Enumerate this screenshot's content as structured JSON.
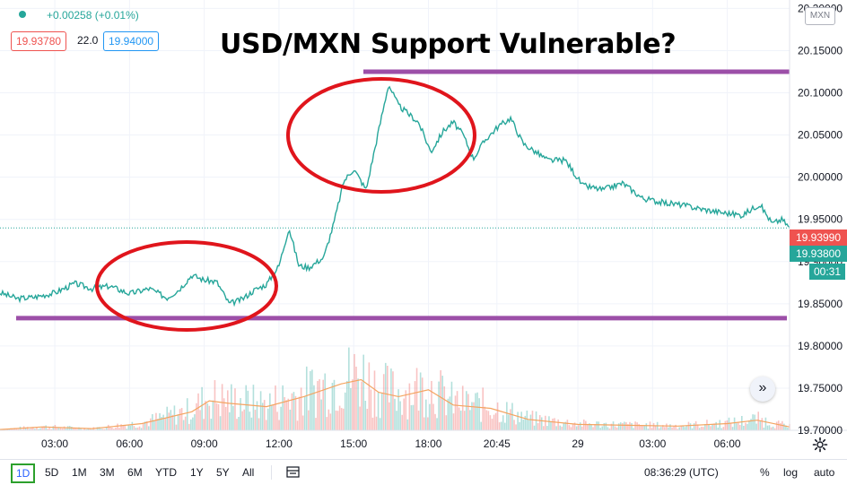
{
  "header": {
    "change": "+0.00258 (+0.01%)",
    "bid": "19.93780",
    "spread": "22.0",
    "ask": "19.94000"
  },
  "title": "USD/MXN Support Vulnerable?",
  "currency": "MXN",
  "price_tags": {
    "last_red": "19.93990",
    "last_green": "19.93800",
    "countdown": "00:31"
  },
  "bottom_bar": {
    "ranges": [
      "1D",
      "5D",
      "1M",
      "3M",
      "6M",
      "YTD",
      "1Y",
      "5Y",
      "All"
    ],
    "active_range": "1D",
    "clock": "08:36:29 (UTC)",
    "percent": "%",
    "log": "log",
    "auto": "auto"
  },
  "colors": {
    "up": "#26a69a",
    "down": "#ef5350",
    "annotation_line": "#9c4fa8",
    "annotation_circle": "#e0151c",
    "volume_ma": "#f4a460"
  },
  "icons": [
    "live-dot-icon",
    "scroll-right-icon",
    "settings-gear-icon",
    "compare-icon"
  ],
  "chart_data": {
    "type": "line",
    "symbol": "USD/MXN",
    "y_ticks": [
      "20.20000",
      "20.15000",
      "20.10000",
      "20.05000",
      "20.00000",
      "19.95000",
      "19.90000",
      "19.85000",
      "19.80000",
      "19.75000",
      "19.70000"
    ],
    "ylim": [
      19.7,
      20.21
    ],
    "x_ticks": [
      "03:00",
      "06:00",
      "09:00",
      "12:00",
      "15:00",
      "18:00",
      "20:45",
      "29",
      "03:00",
      "06:00"
    ],
    "x_tick_hours": [
      3,
      6,
      9,
      12,
      15,
      18,
      20.75,
      24,
      27,
      30
    ],
    "xlim": [
      0.8,
      32.5
    ],
    "grid": true,
    "series": [
      {
        "hours": [
          0.8,
          1.5,
          2.2,
          3.0,
          3.8,
          4.5,
          5.2,
          6.0,
          6.8,
          7.5,
          8.0,
          8.5,
          9.0,
          9.5,
          10.0,
          10.5,
          11.0,
          11.5,
          12.0,
          12.4,
          12.8,
          13.2,
          13.8,
          14.2,
          14.6,
          15.0,
          15.5,
          16.0,
          16.4,
          16.8,
          17.2,
          17.6,
          18.1,
          18.6,
          19.0,
          19.4,
          19.8,
          20.3,
          20.8,
          21.3,
          21.8,
          22.3,
          22.8,
          23.5,
          24.2,
          25.0,
          25.8,
          26.6,
          27.4,
          28.2,
          29.0,
          29.8,
          30.6,
          31.3,
          31.8,
          32.2,
          32.5
        ],
        "values": [
          19.863,
          19.856,
          19.858,
          19.863,
          19.874,
          19.868,
          19.871,
          19.862,
          19.868,
          19.857,
          19.867,
          19.884,
          19.878,
          19.876,
          19.85,
          19.855,
          19.866,
          19.873,
          19.895,
          19.94,
          19.895,
          19.893,
          19.905,
          19.945,
          19.995,
          20.01,
          19.985,
          20.055,
          20.11,
          20.085,
          20.075,
          20.065,
          20.03,
          20.055,
          20.065,
          20.05,
          20.022,
          20.045,
          20.06,
          20.07,
          20.04,
          20.03,
          20.02,
          20.02,
          19.99,
          19.985,
          19.993,
          19.975,
          19.97,
          19.967,
          19.962,
          19.958,
          19.955,
          19.968,
          19.945,
          19.95,
          19.94
        ]
      }
    ],
    "volume_hours": [
      0.8,
      2.5,
      4.5,
      6.5,
      8.5,
      9.2,
      10.0,
      11.5,
      13.0,
      14.5,
      15.3,
      16.0,
      16.8,
      18.0,
      19.0,
      20.5,
      22.0,
      24.0,
      26.0,
      28.0,
      30.0,
      31.2,
      32.5
    ],
    "volume_ma": [
      19.701,
      19.704,
      19.702,
      19.708,
      19.722,
      19.735,
      19.732,
      19.728,
      19.74,
      19.755,
      19.76,
      19.745,
      19.74,
      19.748,
      19.73,
      19.726,
      19.713,
      19.707,
      19.706,
      19.705,
      19.708,
      19.712,
      19.704
    ]
  }
}
